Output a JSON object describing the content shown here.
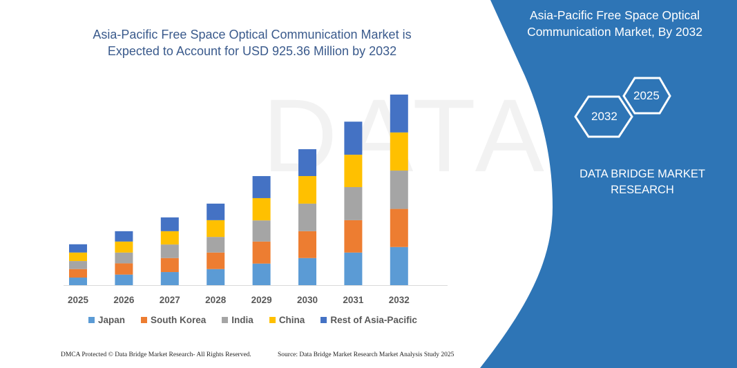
{
  "chart_data": {
    "type": "bar",
    "stacked": true,
    "title": "Asia-Pacific Free Space Optical Communication Market is Expected to Account for USD 925.36 Million by 2032",
    "categories": [
      "2025",
      "2026",
      "2027",
      "2028",
      "2029",
      "2030",
      "2031",
      "2032"
    ],
    "series": [
      {
        "name": "Japan",
        "color": "#5b9bd5",
        "values": [
          36.8,
          51.3,
          63.6,
          78.1,
          104.8,
          131.6,
          158.3,
          185.1
        ]
      },
      {
        "name": "South Korea",
        "color": "#ed7d31",
        "values": [
          41.3,
          54.6,
          68.0,
          80.3,
          107.0,
          130.5,
          157.2,
          185.1
        ]
      },
      {
        "name": "India",
        "color": "#a5a5a5",
        "values": [
          39.0,
          52.4,
          65.8,
          75.8,
          102.6,
          133.8,
          160.6,
          186.2
        ]
      },
      {
        "name": "China",
        "color": "#ffc000",
        "values": [
          41.3,
          53.5,
          64.7,
          81.4,
          108.2,
          133.8,
          157.2,
          185.1
        ]
      },
      {
        "name": "Rest of Asia-Pacific",
        "color": "#4472c4",
        "values": [
          40.1,
          50.2,
          66.9,
          80.3,
          107.0,
          130.5,
          160.6,
          184.0
        ]
      }
    ],
    "xlabel": "",
    "ylabel": "",
    "ylim": [
      0,
      925.36
    ],
    "grid": false,
    "legend_position": "bottom"
  },
  "title_lines": [
    "Asia-Pacific Free Space Optical Communication Market is",
    "Expected to Account for USD 925.36 Million by 2032"
  ],
  "right_panel": {
    "title_lines": [
      "Asia-Pacific Free Space Optical",
      "Communication Market, By 2032"
    ],
    "hex_left": "2032",
    "hex_right": "2025",
    "brand_lines": [
      "DATA BRIDGE MARKET",
      "RESEARCH"
    ],
    "color": "#2e75b6"
  },
  "footer": {
    "left": "DMCA Protected © Data Bridge Market Research- All Rights Reserved.",
    "right": "Source: Data Bridge Market Research Market Analysis Study 2025"
  }
}
